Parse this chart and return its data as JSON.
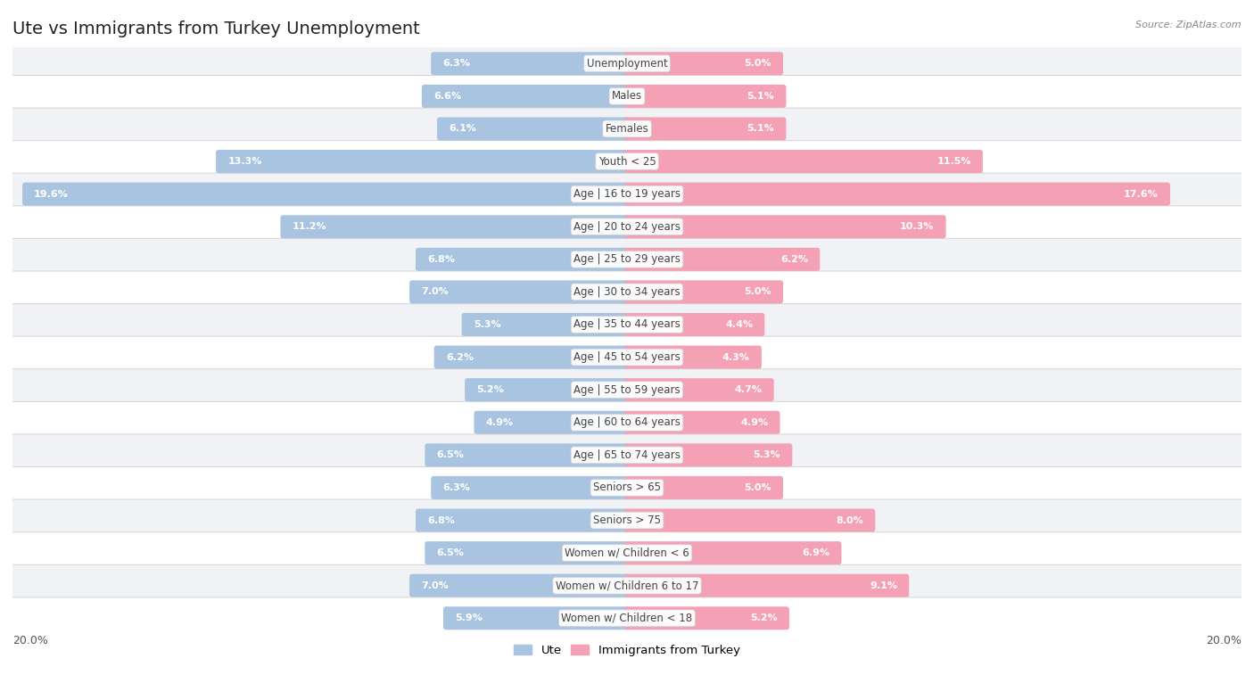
{
  "title": "Ute vs Immigrants from Turkey Unemployment",
  "source": "Source: ZipAtlas.com",
  "categories": [
    "Unemployment",
    "Males",
    "Females",
    "Youth < 25",
    "Age | 16 to 19 years",
    "Age | 20 to 24 years",
    "Age | 25 to 29 years",
    "Age | 30 to 34 years",
    "Age | 35 to 44 years",
    "Age | 45 to 54 years",
    "Age | 55 to 59 years",
    "Age | 60 to 64 years",
    "Age | 65 to 74 years",
    "Seniors > 65",
    "Seniors > 75",
    "Women w/ Children < 6",
    "Women w/ Children 6 to 17",
    "Women w/ Children < 18"
  ],
  "ute_values": [
    6.3,
    6.6,
    6.1,
    13.3,
    19.6,
    11.2,
    6.8,
    7.0,
    5.3,
    6.2,
    5.2,
    4.9,
    6.5,
    6.3,
    6.8,
    6.5,
    7.0,
    5.9
  ],
  "turkey_values": [
    5.0,
    5.1,
    5.1,
    11.5,
    17.6,
    10.3,
    6.2,
    5.0,
    4.4,
    4.3,
    4.7,
    4.9,
    5.3,
    5.0,
    8.0,
    6.9,
    9.1,
    5.2
  ],
  "ute_color": "#a8c4e0",
  "turkey_color": "#f4a0b5",
  "ute_label": "Ute",
  "turkey_label": "Immigrants from Turkey",
  "max_value": 20.0,
  "bg_color": "#ffffff",
  "bar_height": 0.55,
  "title_fontsize": 14,
  "label_fontsize": 8.5,
  "value_fontsize": 8.0,
  "row_colors": [
    "#f0f2f5",
    "#ffffff"
  ]
}
